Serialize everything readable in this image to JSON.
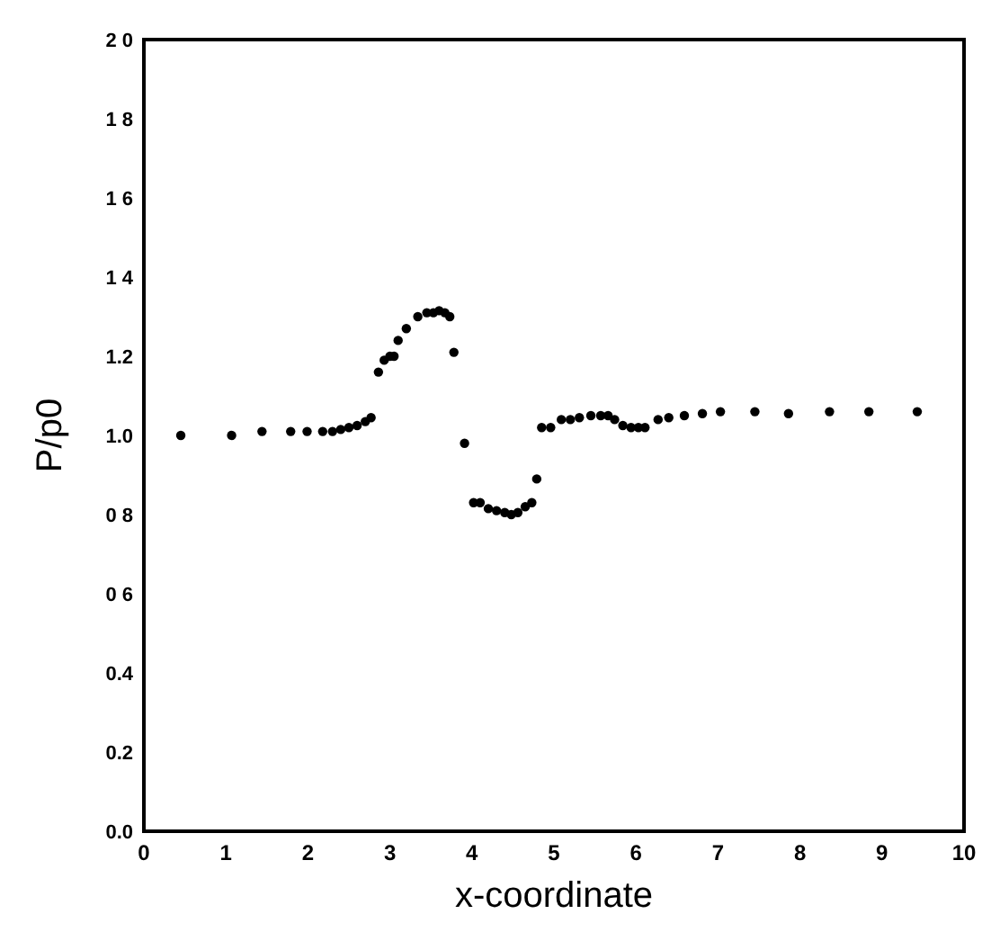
{
  "chart_data": {
    "type": "scatter",
    "xlabel": "x-coordinate",
    "ylabel": "P/p0",
    "xlim": [
      0,
      10
    ],
    "ylim": [
      0,
      2
    ],
    "xticks": [
      0,
      1,
      2,
      3,
      4,
      5,
      6,
      7,
      8,
      9,
      10
    ],
    "yticks": [
      {
        "value": 0,
        "label": "0.0"
      },
      {
        "value": 0.2,
        "label": "0.2"
      },
      {
        "value": 0.4,
        "label": "0.4"
      },
      {
        "value": 0.6,
        "label": "0 6"
      },
      {
        "value": 0.8,
        "label": "0 8"
      },
      {
        "value": 1,
        "label": "1.0"
      },
      {
        "value": 1.2,
        "label": "1.2"
      },
      {
        "value": 1.4,
        "label": "1 4"
      },
      {
        "value": 1.6,
        "label": "1 6"
      },
      {
        "value": 1.8,
        "label": "1 8"
      },
      {
        "value": 2,
        "label": "2 0"
      }
    ],
    "grid": false,
    "marker": "circle",
    "series": [
      {
        "color": "#000000",
        "x": [
          0.45,
          1.07,
          1.44,
          1.79,
          1.99,
          2.18,
          2.3,
          2.4,
          2.5,
          2.6,
          2.7,
          2.77,
          2.86,
          2.93,
          3.0,
          3.05,
          3.1,
          3.2,
          3.34,
          3.45,
          3.53,
          3.6,
          3.67,
          3.73,
          3.78,
          3.91,
          4.02,
          4.1,
          4.2,
          4.3,
          4.4,
          4.48,
          4.56,
          4.65,
          4.73,
          4.79,
          4.85,
          4.96,
          5.09,
          5.2,
          5.31,
          5.45,
          5.57,
          5.66,
          5.74,
          5.84,
          5.94,
          6.03,
          6.11,
          6.27,
          6.4,
          6.59,
          6.81,
          7.03,
          7.45,
          7.86,
          8.36,
          8.84,
          9.43
        ],
        "values": [
          1.0,
          1.0,
          1.01,
          1.01,
          1.01,
          1.01,
          1.01,
          1.015,
          1.02,
          1.025,
          1.035,
          1.045,
          1.16,
          1.19,
          1.2,
          1.2,
          1.24,
          1.27,
          1.3,
          1.31,
          1.31,
          1.315,
          1.31,
          1.3,
          1.21,
          0.98,
          0.83,
          0.83,
          0.815,
          0.81,
          0.805,
          0.8,
          0.805,
          0.82,
          0.83,
          0.89,
          1.02,
          1.02,
          1.04,
          1.04,
          1.045,
          1.05,
          1.05,
          1.05,
          1.04,
          1.025,
          1.02,
          1.02,
          1.02,
          1.04,
          1.045,
          1.05,
          1.055,
          1.06,
          1.06,
          1.055,
          1.06,
          1.06,
          1.06
        ]
      }
    ]
  }
}
